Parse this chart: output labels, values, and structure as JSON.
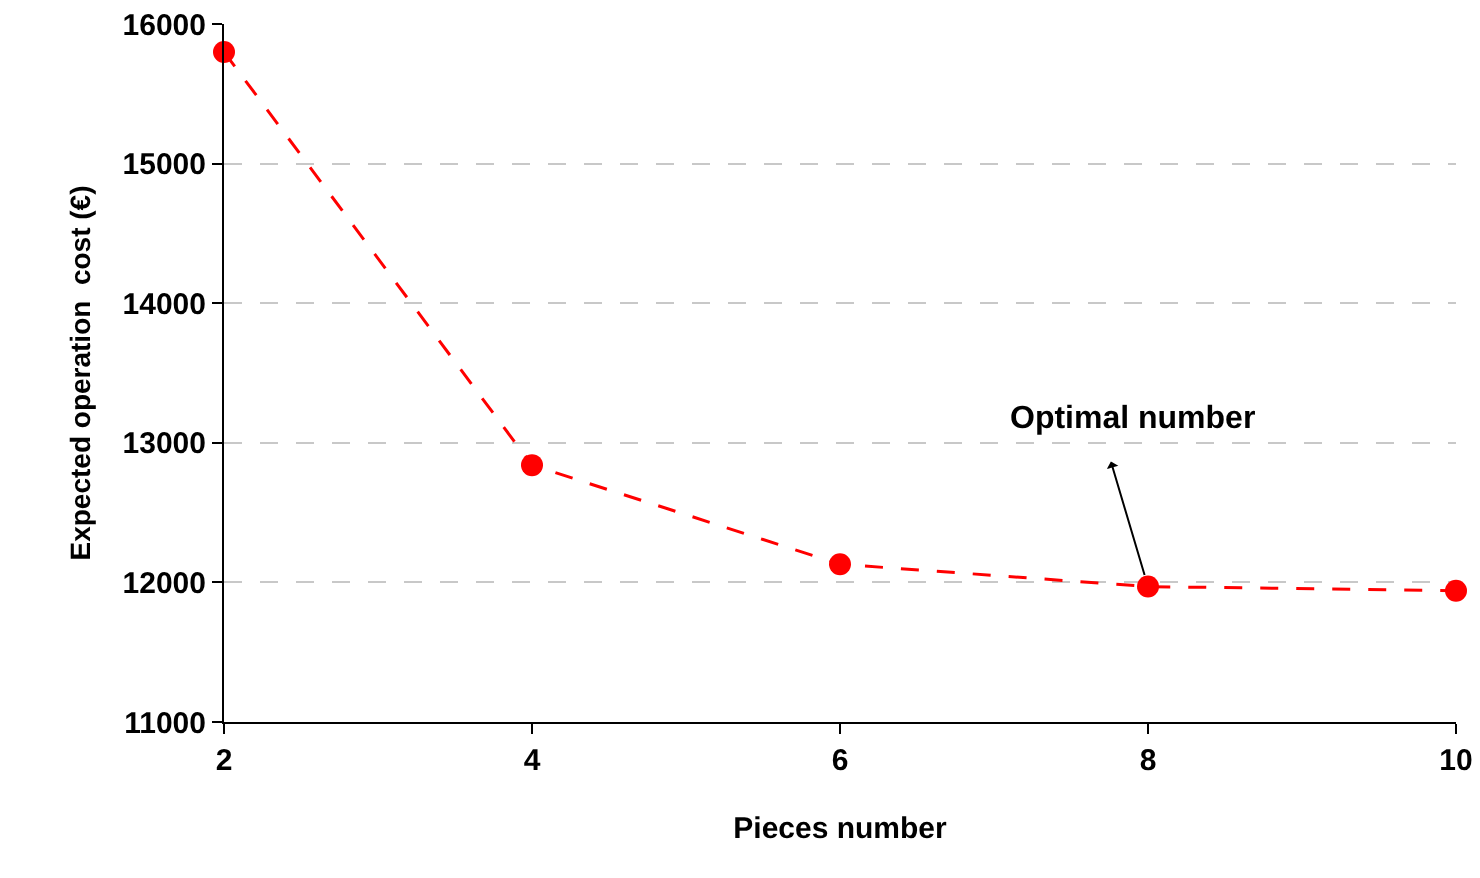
{
  "chart_data": {
    "type": "line",
    "xlabel": "Pieces number",
    "ylabel": "Expected operation  cost (€)",
    "x": [
      2,
      4,
      6,
      8,
      10
    ],
    "series": [
      {
        "color": "#ff0000",
        "values": [
          15800,
          12840,
          12130,
          11970,
          11940
        ]
      }
    ],
    "xlim": [
      2,
      10
    ],
    "xticks": [
      2,
      4,
      6,
      8,
      10
    ],
    "ylim": [
      11000,
      16000
    ],
    "yticks": [
      11000,
      12000,
      13000,
      14000,
      15000,
      16000
    ],
    "grid": "y",
    "marker": "circle",
    "line_style": "dashed",
    "annotations": [
      {
        "text": "Optimal number",
        "x": 8,
        "y": 11970
      }
    ]
  }
}
